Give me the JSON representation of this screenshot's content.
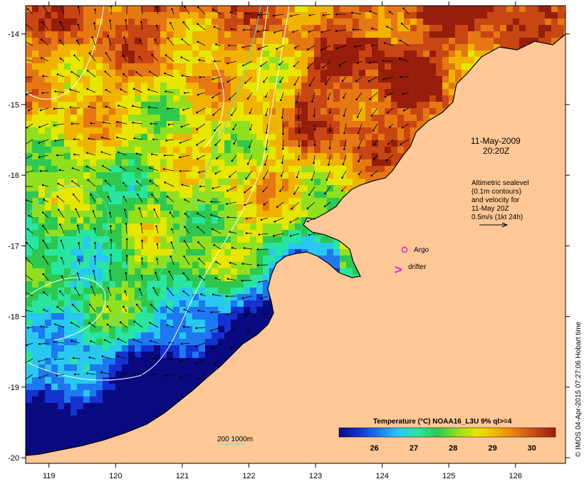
{
  "map": {
    "colors": {
      "land": "#ffc896",
      "coast": "#000000",
      "shelf_contour": "#40e0e0",
      "sealevel_contour": "#ffffff",
      "vector": "#000000",
      "argo": "#e020e0",
      "drifter": "#e020e0"
    },
    "lon_ticks": [
      "119",
      "120",
      "121",
      "122",
      "123",
      "124",
      "125",
      "126"
    ],
    "lat_ticks": [
      "-14",
      "-15",
      "-16",
      "-17",
      "-18",
      "-19",
      "-20"
    ],
    "lon_range": [
      118.65,
      126.75
    ],
    "lat_range": [
      -20.08,
      -13.6
    ]
  },
  "annotations": {
    "date": "11-May-2009",
    "time": "20:20Z",
    "altimetry_line1": "Altimetric sealevel",
    "altimetry_line2": "(0.1m contours)",
    "altimetry_line3": "and velocity for",
    "altimetry_line4": "11-May 20Z",
    "altimetry_line5": "0.5m/s (1kt 24h)",
    "argo_label": "Argo",
    "drifter_label": "drifter",
    "drifter_symbol": ">",
    "isobath_label": "200  1000m"
  },
  "colorbar": {
    "title": "Temperature (°C) NOAA16_L3U 9% ql>=4",
    "ticks": [
      "26",
      "27",
      "28",
      "29",
      "30"
    ],
    "tick_values": [
      26,
      27,
      28,
      29,
      30
    ],
    "range": [
      25.1,
      30.6
    ],
    "stops": [
      "#0a0a80",
      "#1432d0",
      "#1e78f0",
      "#28c8f0",
      "#28e6a0",
      "#2ec850",
      "#90e020",
      "#e6e600",
      "#f0b400",
      "#e67814",
      "#c84614",
      "#961e0a"
    ]
  },
  "credit": "© IMOS 04-Apr-2015 07:27:06 Hobart time"
}
